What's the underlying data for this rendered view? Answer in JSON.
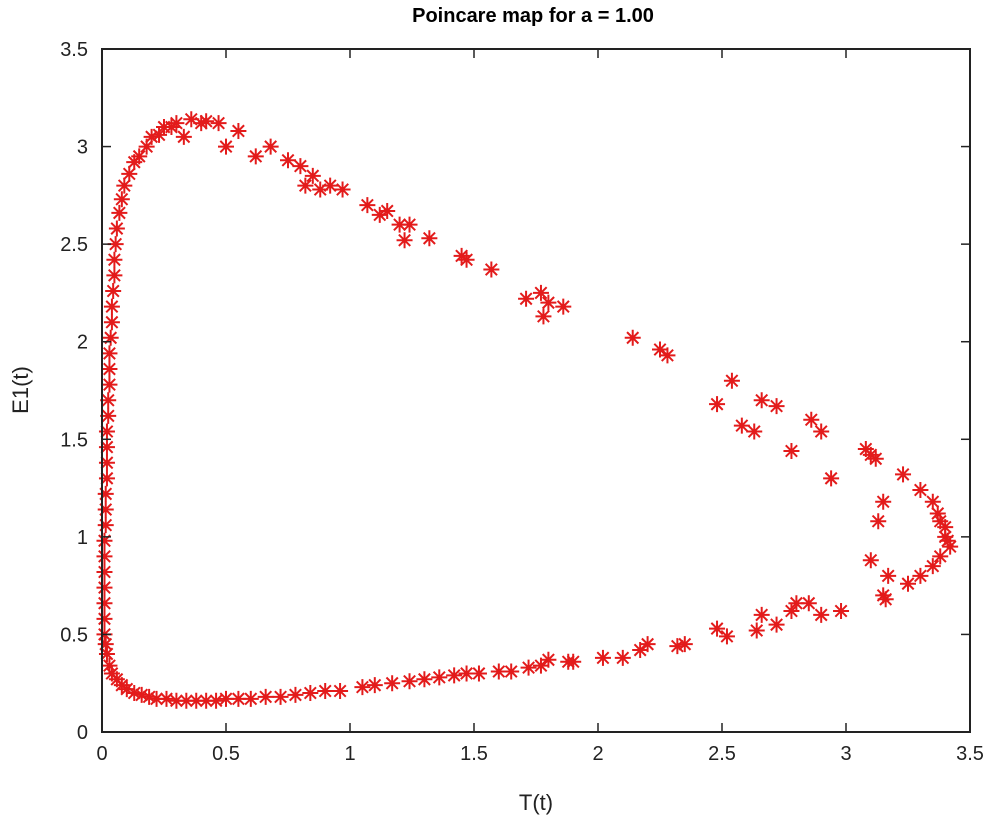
{
  "chart_data": {
    "type": "scatter",
    "title": "Poincare map for a = 1.00",
    "xlabel": "T(t)",
    "ylabel": "E1(t)",
    "xlim": [
      0,
      3.5
    ],
    "ylim": [
      0,
      3.5
    ],
    "xticks": [
      0,
      0.5,
      1,
      1.5,
      2,
      2.5,
      3,
      3.5
    ],
    "yticks": [
      0,
      0.5,
      1,
      1.5,
      2,
      2.5,
      3,
      3.5
    ],
    "xtick_labels": [
      "0",
      "0.5",
      "1",
      "1.5",
      "2",
      "2.5",
      "3",
      "3.5"
    ],
    "ytick_labels": [
      "0",
      "0.5",
      "1",
      "1.5",
      "2",
      "2.5",
      "3",
      "3.5"
    ],
    "grid": false,
    "marker": "asterisk",
    "color": "#e31b1b",
    "series": [
      {
        "name": "Poincare points",
        "points": [
          [
            0.15,
            2.95
          ],
          [
            0.2,
            3.05
          ],
          [
            0.25,
            3.1
          ],
          [
            0.3,
            3.12
          ],
          [
            0.33,
            3.05
          ],
          [
            0.42,
            3.13
          ],
          [
            0.47,
            3.12
          ],
          [
            0.5,
            3.0
          ],
          [
            0.55,
            3.08
          ],
          [
            0.62,
            2.95
          ],
          [
            0.68,
            3.0
          ],
          [
            0.75,
            2.93
          ],
          [
            0.8,
            2.9
          ],
          [
            0.82,
            2.8
          ],
          [
            0.85,
            2.85
          ],
          [
            0.88,
            2.78
          ],
          [
            0.92,
            2.8
          ],
          [
            0.97,
            2.78
          ],
          [
            1.07,
            2.7
          ],
          [
            1.12,
            2.65
          ],
          [
            1.15,
            2.67
          ],
          [
            1.2,
            2.6
          ],
          [
            1.22,
            2.52
          ],
          [
            1.24,
            2.6
          ],
          [
            1.32,
            2.53
          ],
          [
            1.45,
            2.44
          ],
          [
            1.47,
            2.42
          ],
          [
            1.57,
            2.37
          ],
          [
            1.71,
            2.22
          ],
          [
            1.77,
            2.25
          ],
          [
            1.78,
            2.13
          ],
          [
            1.8,
            2.2
          ],
          [
            1.86,
            2.18
          ],
          [
            2.14,
            2.02
          ],
          [
            2.25,
            1.96
          ],
          [
            2.28,
            1.93
          ],
          [
            2.48,
            1.68
          ],
          [
            2.54,
            1.8
          ],
          [
            2.58,
            1.57
          ],
          [
            2.63,
            1.54
          ],
          [
            2.66,
            1.7
          ],
          [
            2.72,
            1.67
          ],
          [
            2.78,
            1.44
          ],
          [
            2.86,
            1.6
          ],
          [
            2.9,
            1.54
          ],
          [
            2.94,
            1.3
          ],
          [
            3.08,
            1.45
          ],
          [
            3.1,
            1.42
          ],
          [
            3.12,
            1.4
          ],
          [
            3.15,
            1.18
          ],
          [
            3.13,
            1.08
          ],
          [
            3.1,
            0.88
          ],
          [
            3.17,
            0.8
          ],
          [
            3.15,
            0.7
          ],
          [
            3.16,
            0.68
          ],
          [
            3.23,
            1.32
          ],
          [
            3.3,
            1.24
          ],
          [
            3.35,
            1.18
          ],
          [
            3.38,
            1.08
          ],
          [
            3.4,
            1.0
          ],
          [
            3.42,
            0.95
          ],
          [
            3.38,
            0.9
          ],
          [
            3.35,
            0.85
          ],
          [
            3.3,
            0.8
          ],
          [
            3.25,
            0.76
          ],
          [
            3.4,
            1.05
          ],
          [
            3.37,
            1.12
          ],
          [
            3.41,
            0.98
          ],
          [
            2.98,
            0.62
          ],
          [
            2.9,
            0.6
          ],
          [
            2.85,
            0.66
          ],
          [
            2.8,
            0.66
          ],
          [
            2.78,
            0.62
          ],
          [
            2.72,
            0.55
          ],
          [
            2.66,
            0.6
          ],
          [
            2.64,
            0.52
          ],
          [
            2.52,
            0.49
          ],
          [
            2.48,
            0.53
          ],
          [
            2.35,
            0.45
          ],
          [
            2.32,
            0.44
          ],
          [
            2.2,
            0.45
          ],
          [
            2.17,
            0.42
          ],
          [
            2.1,
            0.38
          ],
          [
            2.02,
            0.38
          ],
          [
            1.9,
            0.36
          ],
          [
            1.88,
            0.36
          ],
          [
            1.8,
            0.37
          ],
          [
            1.77,
            0.34
          ],
          [
            1.72,
            0.33
          ],
          [
            1.65,
            0.31
          ],
          [
            1.6,
            0.31
          ],
          [
            1.52,
            0.3
          ],
          [
            1.47,
            0.3
          ],
          [
            1.42,
            0.29
          ],
          [
            1.36,
            0.28
          ],
          [
            1.3,
            0.27
          ],
          [
            1.24,
            0.26
          ],
          [
            1.17,
            0.25
          ],
          [
            1.1,
            0.24
          ],
          [
            1.05,
            0.23
          ],
          [
            0.96,
            0.21
          ],
          [
            0.9,
            0.21
          ],
          [
            0.84,
            0.2
          ],
          [
            0.78,
            0.19
          ],
          [
            0.72,
            0.18
          ],
          [
            0.66,
            0.18
          ],
          [
            0.6,
            0.17
          ],
          [
            0.55,
            0.17
          ],
          [
            0.5,
            0.17
          ],
          [
            0.46,
            0.16
          ],
          [
            0.42,
            0.16
          ],
          [
            0.38,
            0.16
          ],
          [
            0.34,
            0.16
          ],
          [
            0.3,
            0.16
          ],
          [
            0.26,
            0.17
          ],
          [
            0.22,
            0.17
          ],
          [
            0.19,
            0.18
          ],
          [
            0.16,
            0.19
          ],
          [
            0.13,
            0.2
          ],
          [
            0.1,
            0.22
          ],
          [
            0.08,
            0.24
          ],
          [
            0.06,
            0.27
          ],
          [
            0.04,
            0.3
          ],
          [
            0.03,
            0.34
          ],
          [
            0.02,
            0.4
          ],
          [
            0.015,
            0.45
          ],
          [
            0.01,
            0.5
          ],
          [
            0.01,
            0.58
          ],
          [
            0.01,
            0.66
          ],
          [
            0.01,
            0.74
          ],
          [
            0.01,
            0.82
          ],
          [
            0.01,
            0.9
          ],
          [
            0.01,
            0.98
          ],
          [
            0.015,
            1.06
          ],
          [
            0.015,
            1.14
          ],
          [
            0.015,
            1.22
          ],
          [
            0.02,
            1.3
          ],
          [
            0.02,
            1.38
          ],
          [
            0.02,
            1.46
          ],
          [
            0.02,
            1.54
          ],
          [
            0.025,
            1.62
          ],
          [
            0.025,
            1.7
          ],
          [
            0.03,
            1.78
          ],
          [
            0.03,
            1.86
          ],
          [
            0.03,
            1.94
          ],
          [
            0.035,
            2.02
          ],
          [
            0.04,
            2.1
          ],
          [
            0.04,
            2.18
          ],
          [
            0.045,
            2.26
          ],
          [
            0.05,
            2.34
          ],
          [
            0.05,
            2.42
          ],
          [
            0.055,
            2.5
          ],
          [
            0.06,
            2.58
          ],
          [
            0.07,
            2.66
          ],
          [
            0.08,
            2.73
          ],
          [
            0.09,
            2.8
          ],
          [
            0.11,
            2.86
          ],
          [
            0.13,
            2.92
          ],
          [
            0.18,
            3.0
          ],
          [
            0.23,
            3.06
          ],
          [
            0.28,
            3.1
          ],
          [
            0.36,
            3.14
          ],
          [
            0.4,
            3.12
          ]
        ]
      }
    ]
  }
}
